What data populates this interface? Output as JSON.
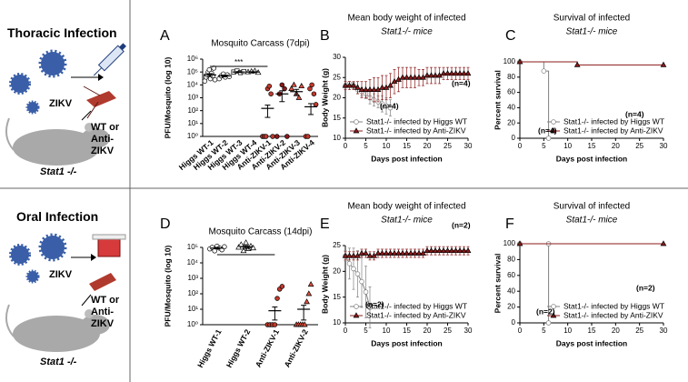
{
  "schematics": [
    {
      "title": "Thoracic Infection",
      "virus": "ZIKV",
      "treatment": "WT or Anti-ZIKV",
      "mouse": "Stat1 -/-"
    },
    {
      "title": "Oral Infection",
      "virus": "ZIKV",
      "treatment": "WT or Anti-ZIKV",
      "mouse": "Stat1 -/-"
    }
  ],
  "chart_data": [
    {
      "panel": "A",
      "type": "strip",
      "title": "Mosquito Carcass (7dpi)",
      "ylabel": "PFU/Mosquito (log 10)",
      "log_y": true,
      "ylim": [
        1,
        1000000
      ],
      "yticks": [
        {
          "value": 1,
          "label": "10⁰"
        },
        {
          "value": 10,
          "label": "10¹"
        },
        {
          "value": 100,
          "label": "10²"
        },
        {
          "value": 1000,
          "label": "10³"
        },
        {
          "value": 10000,
          "label": "10⁴"
        },
        {
          "value": 100000,
          "label": "10⁵"
        },
        {
          "value": 1000000,
          "label": "10⁶"
        }
      ],
      "categories": [
        "Higgs WT-1",
        "Higgs WT-2",
        "Higgs WT-3",
        "Higgs WT-4",
        "Anti-ZIKV-1",
        "Anti-ZIKV-2",
        "Anti-ZIKV-3",
        "Anti-ZIKV-4"
      ],
      "points": [
        [
          20000,
          40000,
          60000,
          100000,
          150000,
          30000,
          80000,
          50000,
          200000,
          25000
        ],
        [
          30000,
          50000,
          70000,
          40000,
          60000,
          45000
        ],
        [
          100000,
          120000,
          90000,
          110000
        ],
        [
          100000,
          110000,
          120000,
          90000
        ],
        [
          1,
          1,
          1,
          5000,
          8000,
          2000,
          1
        ],
        [
          1,
          2000,
          10000,
          5000,
          1
        ],
        [
          5000,
          10000,
          2000,
          1000,
          8000
        ],
        [
          1,
          1,
          5000,
          10000,
          2000,
          300
        ]
      ],
      "means": [
        60000,
        50000,
        100000,
        100000,
        150,
        2000,
        3000,
        200
      ],
      "errors": [
        15000,
        8000,
        8000,
        5000,
        120,
        1500,
        1500,
        150
      ],
      "colors": [
        "#000000",
        "#000000",
        "#000000",
        "#000000",
        "#c0392b",
        "#8b1a1a",
        "#e05040",
        "#c0392b"
      ],
      "markers": [
        "circle",
        "circle",
        "square",
        "triangle",
        "circle",
        "circle",
        "triangle",
        "circle"
      ],
      "filled": [
        false,
        false,
        false,
        false,
        true,
        true,
        true,
        true
      ],
      "annotation": "***"
    },
    {
      "panel": "B",
      "type": "line",
      "title": "Mean body weight of infected",
      "subtitle": "Stat1-/- mice",
      "xlabel": "Days post infection",
      "ylabel": "Body Weight (g)",
      "xlim": [
        0,
        30
      ],
      "xticks": [
        0,
        5,
        10,
        15,
        20,
        25,
        30
      ],
      "ylim": [
        10,
        30
      ],
      "yticks": [
        10,
        15,
        20,
        25,
        30
      ],
      "x": [
        0,
        1,
        2,
        3,
        4,
        5,
        6,
        7,
        8,
        9,
        10,
        11,
        12,
        13,
        14,
        15,
        16,
        17,
        18,
        19,
        20,
        21,
        22,
        23,
        24,
        25,
        26,
        27,
        28,
        29,
        30
      ],
      "series": [
        {
          "name": "Stat1-/- infected by Higgs WT",
          "color": "#808080",
          "marker": "circle",
          "filled": false,
          "values": [
            23,
            23.5,
            23,
            22,
            21.5,
            21,
            20,
            19.5,
            19,
            18.5,
            18,
            17.5,
            null,
            null,
            null,
            null,
            null,
            null,
            null,
            null,
            null,
            null,
            null,
            null,
            null,
            null,
            null,
            null,
            null,
            null,
            null
          ],
          "errors": [
            0.5,
            0.5,
            0.8,
            1,
            1,
            1.2,
            1.5,
            1.5,
            1.5,
            2,
            2,
            2,
            null,
            null,
            null,
            null,
            null,
            null,
            null,
            null,
            null,
            null,
            null,
            null,
            null,
            null,
            null,
            null,
            null,
            null,
            null
          ]
        },
        {
          "name": "Stat1-/- infected by Anti-ZIKV",
          "color": "#8b1a1a",
          "marker": "triangle",
          "filled": true,
          "values": [
            23,
            23,
            23,
            22.5,
            22,
            22,
            22,
            22,
            22,
            22.5,
            22.5,
            23,
            24,
            24.5,
            25,
            25,
            25,
            25,
            25,
            25,
            25.5,
            25.5,
            25.5,
            25.5,
            26,
            26,
            26,
            26,
            26,
            26,
            26
          ],
          "errors": [
            1,
            1,
            1,
            1.5,
            2,
            2,
            2.5,
            3,
            3,
            3,
            3,
            3,
            3,
            3,
            2.5,
            2.5,
            2.5,
            2.5,
            2,
            2,
            2,
            2,
            2,
            2,
            1.5,
            1.5,
            1.5,
            1.5,
            1.5,
            1.5,
            1.5
          ]
        }
      ],
      "legend": "lower left",
      "annotations": [
        "(n=4)",
        "(n=4)"
      ]
    },
    {
      "panel": "C",
      "type": "survival",
      "title": "Survival of infected",
      "subtitle": "Stat1-/- mice",
      "xlabel": "Days post infection",
      "ylabel": "Percent survival",
      "xlim": [
        0,
        30
      ],
      "xticks": [
        0,
        5,
        10,
        15,
        20,
        25,
        30
      ],
      "ylim": [
        0,
        100
      ],
      "yticks": [
        0,
        20,
        40,
        60,
        80,
        100
      ],
      "series": [
        {
          "name": "Stat1-/- infected by Higgs WT",
          "color": "#808080",
          "marker": "circle",
          "filled": false,
          "x": [
            0,
            5,
            6
          ],
          "values": [
            100,
            88,
            0
          ]
        },
        {
          "name": "Stat1-/- infected by Anti-ZIKV",
          "color": "#8b1a1a",
          "marker": "triangle",
          "filled": true,
          "x": [
            0,
            12,
            30
          ],
          "values": [
            100,
            96,
            96
          ]
        }
      ],
      "legend": "lower right",
      "annotations": [
        "(n=4)",
        "(n=4)"
      ]
    },
    {
      "panel": "D",
      "type": "strip",
      "title": "Mosquito Carcass (14dpi)",
      "ylabel": "PFU/Mosquito (log 10)",
      "log_y": true,
      "ylim": [
        1,
        100000
      ],
      "yticks": [
        {
          "value": 1,
          "label": "10⁰"
        },
        {
          "value": 10,
          "label": "10¹"
        },
        {
          "value": 100,
          "label": "10²"
        },
        {
          "value": 1000,
          "label": "10³"
        },
        {
          "value": 10000,
          "label": "10⁴"
        },
        {
          "value": 100000,
          "label": "10⁵"
        }
      ],
      "categories": [
        "Higgs WT-1",
        "Higgs WT-2",
        "Anti-ZIKV-1",
        "Anti-ZIKV-2"
      ],
      "points": [
        [
          80000,
          100000,
          60000,
          120000,
          90000,
          70000,
          110000
        ],
        [
          100000,
          150000,
          60000,
          200000,
          80000,
          120000,
          90000
        ],
        [
          1,
          1,
          1,
          1,
          50,
          200,
          300
        ],
        [
          1,
          1,
          1,
          1,
          1,
          30,
          100,
          400
        ]
      ],
      "means": [
        90000,
        110000,
        8,
        10
      ],
      "errors": [
        10000,
        20000,
        6,
        8
      ],
      "colors": [
        "#000000",
        "#000000",
        "#c0392b",
        "#e05040"
      ],
      "markers": [
        "circle",
        "triangle",
        "circle",
        "triangle"
      ],
      "filled": [
        false,
        false,
        true,
        true
      ],
      "annotation": "***"
    },
    {
      "panel": "E",
      "type": "line",
      "title": "Mean body weight of infected",
      "subtitle": "Stat1-/- mice",
      "xlabel": "Days post infection",
      "ylabel": "Body Weight (g)",
      "xlim": [
        0,
        30
      ],
      "xticks": [
        0,
        5,
        10,
        15,
        20,
        25,
        30
      ],
      "ylim": [
        10,
        25
      ],
      "yticks": [
        10,
        15,
        20,
        25
      ],
      "x": [
        0,
        1,
        2,
        3,
        4,
        5,
        6,
        7,
        8,
        9,
        10,
        11,
        12,
        13,
        14,
        15,
        16,
        17,
        18,
        19,
        20,
        21,
        22,
        23,
        24,
        25,
        26,
        27,
        28,
        29,
        30
      ],
      "series": [
        {
          "name": "Stat1-/- infected by Higgs WT",
          "color": "#808080",
          "marker": "circle",
          "filled": false,
          "values": [
            23,
            21.5,
            20.5,
            19.5,
            18,
            16,
            13,
            null,
            null,
            null,
            null,
            null,
            null,
            null,
            null,
            null,
            null,
            null,
            null,
            null,
            null,
            null,
            null,
            null,
            null,
            null,
            null,
            null,
            null,
            null,
            null
          ],
          "errors": [
            1,
            3,
            4,
            4.5,
            5,
            5,
            4,
            null,
            null,
            null,
            null,
            null,
            null,
            null,
            null,
            null,
            null,
            null,
            null,
            null,
            null,
            null,
            null,
            null,
            null,
            null,
            null,
            null,
            null,
            null,
            null
          ]
        },
        {
          "name": "Stat1-/- infected by Anti-ZIKV",
          "color": "#8b1a1a",
          "marker": "triangle",
          "filled": true,
          "values": [
            23,
            23,
            23,
            23,
            23.5,
            23.5,
            23,
            23,
            23.5,
            23.5,
            23.5,
            23.5,
            23.5,
            23.5,
            23.5,
            23.5,
            23.5,
            23.5,
            23.5,
            23.5,
            24,
            24,
            24,
            24,
            24,
            24,
            24,
            24,
            24,
            24,
            24
          ],
          "errors": [
            0.8,
            0.8,
            0.8,
            0.8,
            0.8,
            0.8,
            0.8,
            0.8,
            0.8,
            0.8,
            0.8,
            0.8,
            0.8,
            0.8,
            0.8,
            0.8,
            0.8,
            0.8,
            0.8,
            0.8,
            0.8,
            0.8,
            0.8,
            0.8,
            0.8,
            0.8,
            0.8,
            0.8,
            0.8,
            0.8,
            0.8
          ]
        }
      ],
      "legend": "lower left",
      "annotations": [
        "(n=2)",
        "(n=2)"
      ]
    },
    {
      "panel": "F",
      "type": "survival",
      "title": "Survival of infected",
      "subtitle": "Stat1-/- mice",
      "xlabel": "Days post infection",
      "ylabel": "Percent survival",
      "xlim": [
        0,
        30
      ],
      "xticks": [
        0,
        5,
        10,
        15,
        20,
        25,
        30
      ],
      "ylim": [
        0,
        100
      ],
      "yticks": [
        0,
        20,
        40,
        60,
        80,
        100
      ],
      "series": [
        {
          "name": "Stat1-/- infected by Higgs WT",
          "color": "#808080",
          "marker": "circle",
          "filled": false,
          "x": [
            0,
            6,
            6
          ],
          "values": [
            100,
            100,
            0
          ]
        },
        {
          "name": "Stat1-/- infected by Anti-ZIKV",
          "color": "#8b1a1a",
          "marker": "triangle",
          "filled": true,
          "x": [
            0,
            30
          ],
          "values": [
            100,
            100
          ]
        }
      ],
      "legend": "lower right",
      "annotations": [
        "(n=2)",
        "(n=2)"
      ]
    }
  ]
}
